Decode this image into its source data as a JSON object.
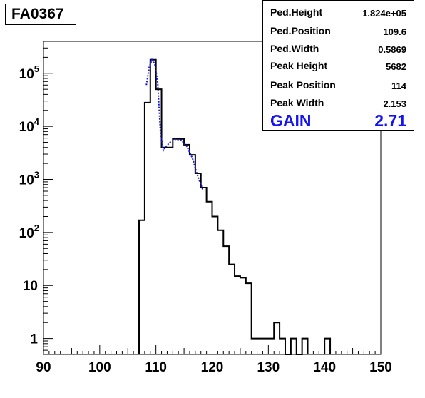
{
  "title": "FA0367",
  "stats": [
    {
      "label": "Ped.Height",
      "value": "1.824e+05"
    },
    {
      "label": "Ped.Position",
      "value": "109.6"
    },
    {
      "label": "Ped.Width",
      "value": "0.5869"
    },
    {
      "label": "Peak Height",
      "value": "5682"
    },
    {
      "label": "Peak Position",
      "value": "114"
    },
    {
      "label": "Peak Width",
      "value": "2.153"
    }
  ],
  "gain": {
    "label": "GAIN",
    "value": "2.71"
  },
  "colors": {
    "histogram": "#000000",
    "fit": "#1414f0",
    "gain_text": "#1414f0"
  },
  "chart_data": {
    "type": "histogram",
    "xlim": [
      90,
      150
    ],
    "ylim_log": [
      0.5,
      400000
    ],
    "y_scale": "log",
    "x_ticks": [
      {
        "value": 90,
        "label": "90"
      },
      {
        "value": 100,
        "label": "100"
      },
      {
        "value": 110,
        "label": "110"
      },
      {
        "value": 120,
        "label": "120"
      },
      {
        "value": 130,
        "label": "130"
      },
      {
        "value": 140,
        "label": "140"
      },
      {
        "value": 150,
        "label": "150"
      }
    ],
    "y_ticks": [
      {
        "value": 1,
        "mant": "1",
        "exp": ""
      },
      {
        "value": 10,
        "mant": "10",
        "exp": ""
      },
      {
        "value": 100,
        "mant": "10",
        "exp": "2"
      },
      {
        "value": 1000,
        "mant": "10",
        "exp": "3"
      },
      {
        "value": 10000,
        "mant": "10",
        "exp": "4"
      },
      {
        "value": 100000,
        "mant": "10",
        "exp": "5"
      }
    ],
    "bin_width": 1,
    "bins": [
      {
        "x": 107,
        "y": 170
      },
      {
        "x": 108,
        "y": 28000
      },
      {
        "x": 109,
        "y": 180000
      },
      {
        "x": 110,
        "y": 50000
      },
      {
        "x": 111,
        "y": 4000
      },
      {
        "x": 112,
        "y": 4000
      },
      {
        "x": 113,
        "y": 5800
      },
      {
        "x": 114,
        "y": 5800
      },
      {
        "x": 115,
        "y": 4500
      },
      {
        "x": 116,
        "y": 2900
      },
      {
        "x": 117,
        "y": 1300
      },
      {
        "x": 118,
        "y": 700
      },
      {
        "x": 119,
        "y": 380
      },
      {
        "x": 120,
        "y": 200
      },
      {
        "x": 121,
        "y": 110
      },
      {
        "x": 122,
        "y": 55
      },
      {
        "x": 123,
        "y": 25
      },
      {
        "x": 124,
        "y": 15
      },
      {
        "x": 125,
        "y": 14
      },
      {
        "x": 126,
        "y": 11
      },
      {
        "x": 127,
        "y": 1
      },
      {
        "x": 128,
        "y": 1
      },
      {
        "x": 129,
        "y": 1
      },
      {
        "x": 130,
        "y": 1
      },
      {
        "x": 131,
        "y": 2
      },
      {
        "x": 132,
        "y": 1
      },
      {
        "x": 133,
        "y": 0
      },
      {
        "x": 134,
        "y": 1
      },
      {
        "x": 135,
        "y": 0
      },
      {
        "x": 136,
        "y": 1
      },
      {
        "x": 140,
        "y": 1
      }
    ],
    "fit_curve": [
      {
        "x": 108.3,
        "y": 60000
      },
      {
        "x": 108.8,
        "y": 130000
      },
      {
        "x": 109.3,
        "y": 180000
      },
      {
        "x": 109.8,
        "y": 150000
      },
      {
        "x": 110.3,
        "y": 70000
      },
      {
        "x": 110.8,
        "y": 8000
      },
      {
        "x": 111.3,
        "y": 3500
      },
      {
        "x": 111.8,
        "y": 4200
      },
      {
        "x": 112.5,
        "y": 5000
      },
      {
        "x": 113.5,
        "y": 5700
      },
      {
        "x": 114.5,
        "y": 5500
      },
      {
        "x": 115.5,
        "y": 4200
      },
      {
        "x": 116.5,
        "y": 2500
      },
      {
        "x": 117.5,
        "y": 1100
      },
      {
        "x": 118.3,
        "y": 650
      }
    ]
  }
}
